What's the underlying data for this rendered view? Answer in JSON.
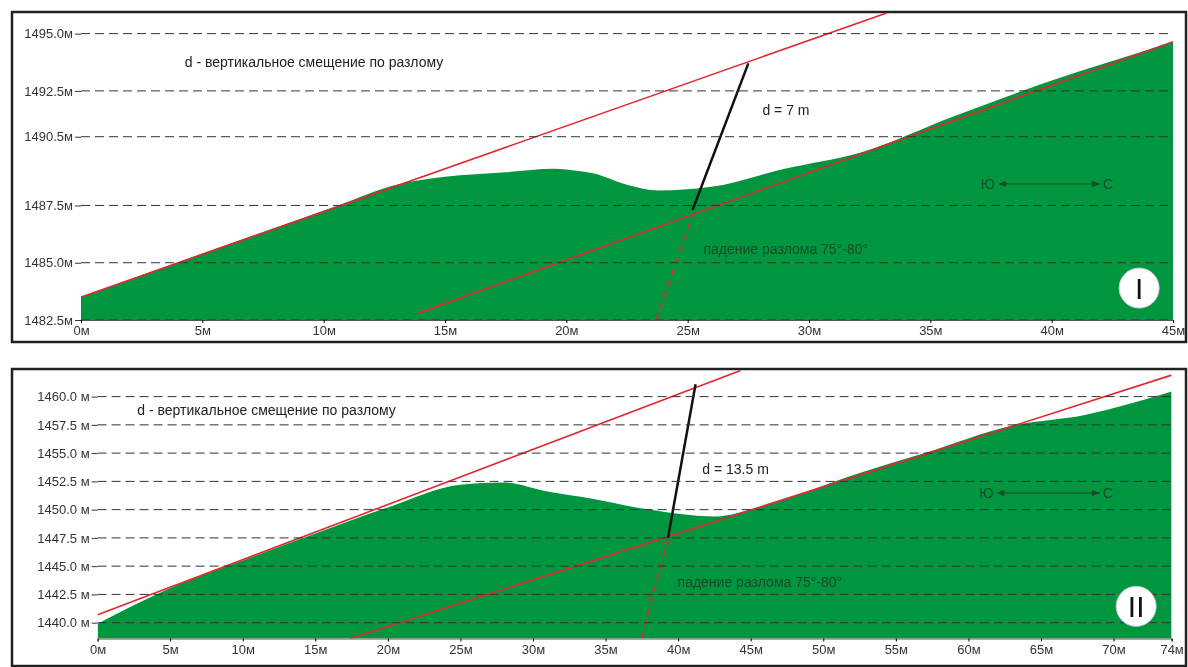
{
  "chart_data": [
    {
      "type": "area",
      "grid": "y",
      "xlim": [
        0,
        45
      ],
      "ylim": [
        1482.5,
        1495.9
      ],
      "xticks": [
        {
          "value": 0,
          "label": "0м"
        },
        {
          "value": 5,
          "label": "5м"
        },
        {
          "value": 10,
          "label": "10м"
        },
        {
          "value": 15,
          "label": "15м"
        },
        {
          "value": 20,
          "label": "20м"
        },
        {
          "value": 25,
          "label": "25м"
        },
        {
          "value": 30,
          "label": "30м"
        },
        {
          "value": 35,
          "label": "35м"
        },
        {
          "value": 40,
          "label": "40м"
        },
        {
          "value": 45,
          "label": "45м"
        }
      ],
      "yticks": [
        {
          "value": 1482.5,
          "label": "1482.5м"
        },
        {
          "value": 1485,
          "label": "1485.0м"
        },
        {
          "value": 1487.5,
          "label": "1487.5м"
        },
        {
          "value": 1490.5,
          "label": "1490.5м"
        },
        {
          "value": 1492.5,
          "label": "1492.5м"
        },
        {
          "value": 1495,
          "label": "1495.0м"
        }
      ],
      "series": [
        {
          "type": "area",
          "color": "#00963f",
          "x": [
            0,
            5,
            10.6,
            13,
            15,
            17.5,
            19.5,
            20.5,
            21.1,
            22.5,
            23.8,
            25.9,
            29,
            32.1,
            36,
            40,
            42.5,
            45
          ],
          "values": [
            1483.5,
            1485.4,
            1487.5,
            1488.4,
            1488.75,
            1488.95,
            1489.1,
            1489.0,
            1488.9,
            1488.4,
            1488.15,
            1488.3,
            1489.1,
            1489.8,
            1491.4,
            1492.95,
            1493.8,
            1494.65
          ]
        },
        {
          "type": "line",
          "color": "#e3262f",
          "x": [
            0,
            33.2
          ],
          "values": [
            1483.5,
            1495.9
          ]
        },
        {
          "type": "line",
          "color": "#e3262f",
          "x": [
            13.9,
            45
          ],
          "values": [
            1482.8,
            1494.65
          ]
        },
        {
          "type": "line",
          "color": "#e3262f",
          "line_style": "dashed",
          "x": [
            23.7,
            25.2
          ],
          "values": [
            1482.5,
            1487.1
          ]
        },
        {
          "type": "line",
          "color": "#111111",
          "x": [
            25.2,
            27.5
          ],
          "values": [
            1487.3,
            1493.7
          ]
        }
      ],
      "annotations": [
        "d - вертикальное смещение по разлому",
        "d = 7 m",
        "падение разлома 75°-80°",
        "Ю",
        "С",
        "I"
      ]
    },
    {
      "type": "area",
      "grid": "y",
      "xlim": [
        0,
        74
      ],
      "ylim": [
        1438.6,
        1462.3
      ],
      "xticks": [
        {
          "value": 0,
          "label": "0м"
        },
        {
          "value": 5,
          "label": "5м"
        },
        {
          "value": 10,
          "label": "10м"
        },
        {
          "value": 15,
          "label": "15м"
        },
        {
          "value": 20,
          "label": "20м"
        },
        {
          "value": 25,
          "label": "25м"
        },
        {
          "value": 30,
          "label": "30м"
        },
        {
          "value": 35,
          "label": "35м"
        },
        {
          "value": 40,
          "label": "40м"
        },
        {
          "value": 45,
          "label": "45м"
        },
        {
          "value": 50,
          "label": "50м"
        },
        {
          "value": 55,
          "label": "55м"
        },
        {
          "value": 60,
          "label": "60м"
        },
        {
          "value": 65,
          "label": "65м"
        },
        {
          "value": 70,
          "label": "70м"
        },
        {
          "value": 74,
          "label": "74м"
        }
      ],
      "yticks": [
        {
          "value": 1440,
          "label": "1440.0 м"
        },
        {
          "value": 1442.5,
          "label": "1442.5 м"
        },
        {
          "value": 1445,
          "label": "1445.0 м"
        },
        {
          "value": 1447.5,
          "label": "1447.5 м"
        },
        {
          "value": 1450,
          "label": "1450.0 м"
        },
        {
          "value": 1452.5,
          "label": "1452.5 м"
        },
        {
          "value": 1455,
          "label": "1455.0 м"
        },
        {
          "value": 1457.5,
          "label": "1457.5 м"
        },
        {
          "value": 1460,
          "label": "1460.0 м"
        }
      ],
      "series": [
        {
          "type": "area",
          "color": "#00963f",
          "x": [
            0,
            4.9,
            10,
            15,
            20,
            25,
            28,
            31,
            33.9,
            37.1,
            42.6,
            45.5,
            52.4,
            57,
            62.9,
            68.1,
            74
          ],
          "values": [
            1439.9,
            1443.0,
            1445.5,
            1447.9,
            1450.2,
            1452.2,
            1452.4,
            1451.6,
            1451.0,
            1450.2,
            1449.4,
            1450.2,
            1453.2,
            1455.0,
            1457.4,
            1458.4,
            1460.45
          ]
        },
        {
          "type": "line",
          "color": "#e3262f",
          "x": [
            0,
            44.3
          ],
          "values": [
            1440.7,
            1462.3
          ]
        },
        {
          "type": "line",
          "color": "#e3262f",
          "x": [
            17.4,
            74
          ],
          "values": [
            1438.6,
            1461.9
          ]
        },
        {
          "type": "line",
          "color": "#e3262f",
          "line_style": "dashed",
          "x": [
            37.5,
            39.3
          ],
          "values": [
            1438.6,
            1447.5
          ]
        },
        {
          "type": "line",
          "color": "#111111",
          "x": [
            39.3,
            41.2
          ],
          "values": [
            1447.5,
            1461.1
          ]
        }
      ],
      "annotations": [
        "d - вертикальное смещение по разлому",
        "d = 13.5 m",
        "падение разлома 75°-80°",
        "Ю",
        "С",
        "II"
      ]
    }
  ]
}
